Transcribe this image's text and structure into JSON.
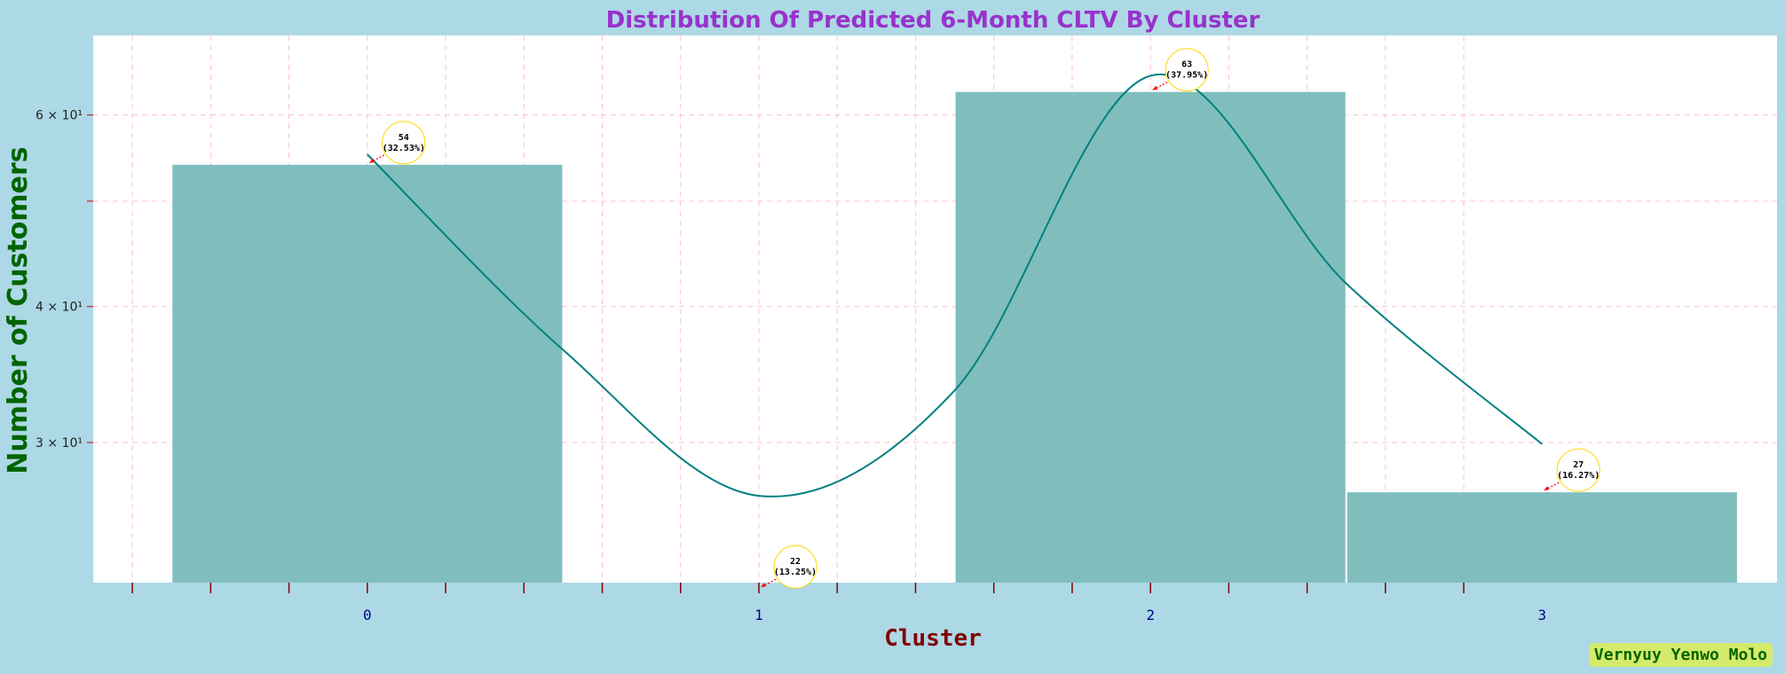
{
  "chart_data": {
    "type": "bar",
    "title": "Distribution Of Predicted 6-Month CLTV By Cluster",
    "xlabel": "Cluster",
    "ylabel": "Number of Customers",
    "categories": [
      "0",
      "1",
      "2",
      "3"
    ],
    "values": [
      54,
      22,
      63,
      27
    ],
    "annotations": [
      "54\n(32.53%)",
      "22\n(13.25%)",
      "63\n(37.95%)",
      "27\n(16.27%)"
    ],
    "kde_curve": {
      "x": [
        0,
        0.5,
        1,
        1.5,
        2,
        2.5,
        3
      ],
      "y": [
        55.2,
        36.5,
        26.8,
        33.5,
        65.2,
        42,
        29.9
      ]
    },
    "y_scale": "log",
    "ylim": [
      22.3,
      71
    ],
    "yticks": [
      30,
      40,
      60
    ],
    "ytick_labels": [
      "3 × 10¹",
      "4 × 10¹",
      "6 × 10¹"
    ],
    "grid": true,
    "colors": {
      "bar": "#80bebe",
      "curve": "#008080",
      "title": "#9932cc",
      "ylabel": "#006400",
      "xlabel": "#800000",
      "xtick": "#00008b",
      "grid": "#ffc0cb",
      "background": "#add8e6",
      "annotation_circle": "#ffd700",
      "arrow": "#ff0000"
    }
  },
  "watermark": "Vernyuy Yenwo Molo"
}
